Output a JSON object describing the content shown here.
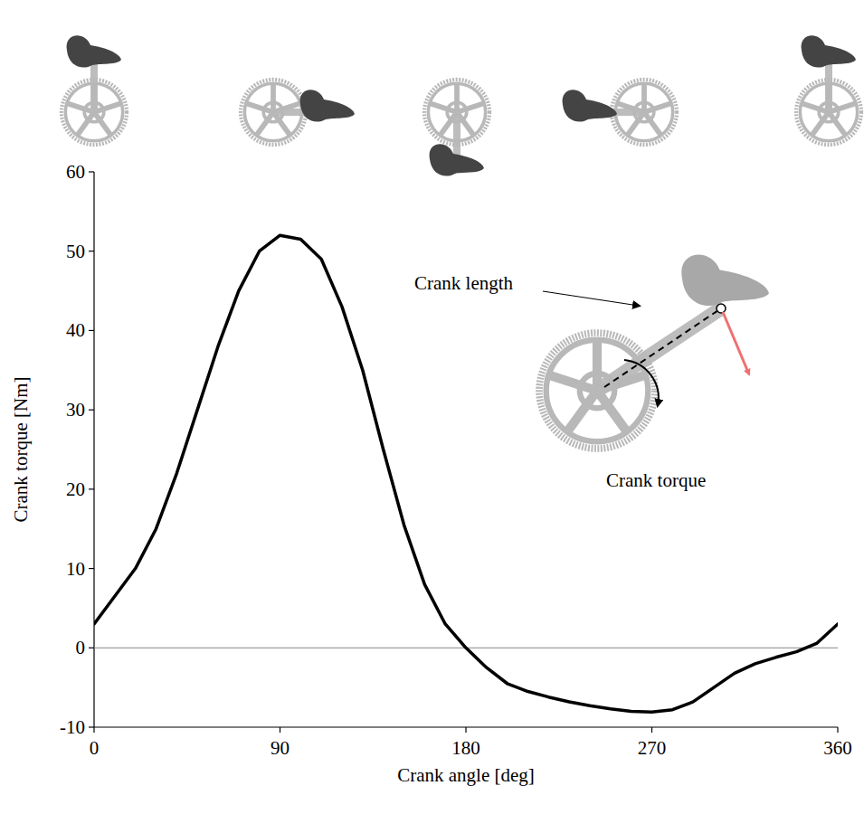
{
  "chart_data": {
    "type": "line",
    "x_label": "Crank angle [deg]",
    "y_label": "Crank torque [Nm]",
    "annotations": [
      "Crank length",
      "Crank torque"
    ],
    "x": [
      0,
      10,
      20,
      30,
      40,
      50,
      60,
      70,
      80,
      90,
      100,
      110,
      120,
      130,
      140,
      150,
      160,
      170,
      180,
      190,
      200,
      210,
      220,
      230,
      240,
      250,
      260,
      270,
      280,
      290,
      300,
      310,
      320,
      330,
      340,
      350,
      360
    ],
    "series": [
      {
        "name": "Crank torque",
        "color": "#000000",
        "values": [
          3,
          6.5,
          10,
          15,
          22,
          30,
          38,
          45,
          50,
          52,
          51.5,
          49,
          43,
          35,
          25,
          15.5,
          8,
          3,
          0,
          -2.5,
          -4.5,
          -5.5,
          -6.2,
          -6.8,
          -7.3,
          -7.7,
          -8,
          -8.1,
          -7.8,
          -6.8,
          -5,
          -3.2,
          -2,
          -1.2,
          -0.5,
          0.6,
          3
        ]
      }
    ],
    "xlim": [
      0,
      360
    ],
    "xticks": [
      0,
      90,
      180,
      270,
      360
    ],
    "ylim": [
      -10,
      60
    ],
    "yticks": [
      -10,
      0,
      10,
      20,
      30,
      40,
      50,
      60
    ],
    "grid": false
  }
}
